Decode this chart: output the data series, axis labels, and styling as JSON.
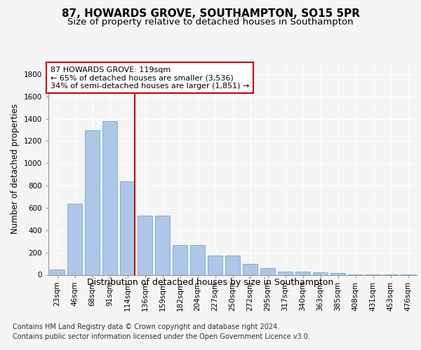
{
  "title": "87, HOWARDS GROVE, SOUTHAMPTON, SO15 5PR",
  "subtitle": "Size of property relative to detached houses in Southampton",
  "xlabel": "Distribution of detached houses by size in Southampton",
  "ylabel": "Number of detached properties",
  "categories": [
    "23sqm",
    "46sqm",
    "68sqm",
    "91sqm",
    "114sqm",
    "136sqm",
    "159sqm",
    "182sqm",
    "204sqm",
    "227sqm",
    "250sqm",
    "272sqm",
    "295sqm",
    "317sqm",
    "340sqm",
    "363sqm",
    "385sqm",
    "408sqm",
    "431sqm",
    "453sqm",
    "476sqm"
  ],
  "values": [
    50,
    640,
    1300,
    1380,
    840,
    530,
    530,
    270,
    270,
    175,
    175,
    100,
    60,
    30,
    30,
    25,
    15,
    5,
    5,
    5,
    5
  ],
  "bar_color": "#aec6e8",
  "bar_edge_color": "#5a9fd4",
  "vline_x_index": 4,
  "vline_color": "#cc0000",
  "annotation_line1": "87 HOWARDS GROVE: 119sqm",
  "annotation_line2": "← 65% of detached houses are smaller (3,536)",
  "annotation_line3": "34% of semi-detached houses are larger (1,851) →",
  "annotation_box_color": "#ffffff",
  "annotation_box_edge_color": "#cc0000",
  "ylim": [
    0,
    1900
  ],
  "yticks": [
    0,
    200,
    400,
    600,
    800,
    1000,
    1200,
    1400,
    1600,
    1800
  ],
  "footer_line1": "Contains HM Land Registry data © Crown copyright and database right 2024.",
  "footer_line2": "Contains public sector information licensed under the Open Government Licence v3.0.",
  "title_fontsize": 11,
  "subtitle_fontsize": 9.5,
  "xlabel_fontsize": 9,
  "ylabel_fontsize": 8.5,
  "tick_fontsize": 7.5,
  "annotation_fontsize": 8,
  "footer_fontsize": 7,
  "background_color": "#f5f5f5",
  "plot_bg_color": "#f5f5f5",
  "grid_color": "#ffffff"
}
